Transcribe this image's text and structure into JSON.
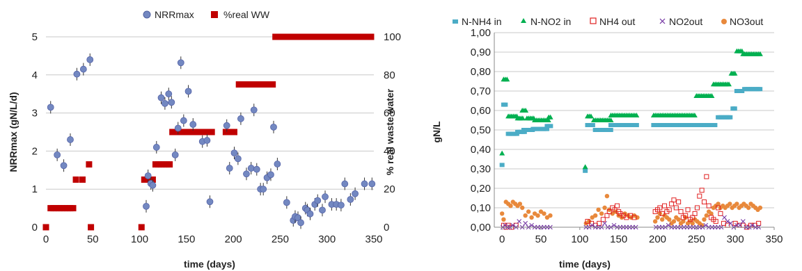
{
  "chart_data": [
    {
      "type": "scatter",
      "title": "",
      "xlabel": "time (days)",
      "ylabel": "NRRmax (gN/L/d)",
      "y2label": "% real waste water",
      "xlim": [
        0,
        350
      ],
      "ylim": [
        0,
        5
      ],
      "y2lim": [
        0,
        100
      ],
      "xticks": [
        "0",
        "50",
        "100",
        "150",
        "200",
        "250",
        "300",
        "350"
      ],
      "yticks": [
        "0",
        "1",
        "2",
        "3",
        "4",
        "5"
      ],
      "y2ticks": [
        "0",
        "20",
        "40",
        "60",
        "80",
        "100"
      ],
      "grid": true,
      "legend_position": "top",
      "series": [
        {
          "name": "NRRmax",
          "axis": "left",
          "marker": "circle",
          "color": "#7388C1",
          "x": [
            5,
            12,
            19,
            26,
            33,
            40,
            47,
            107,
            109,
            112,
            114,
            118,
            123,
            127,
            131,
            134,
            138,
            141,
            144,
            147,
            152,
            157,
            167,
            172,
            175,
            193,
            196,
            201,
            205,
            208,
            214,
            219,
            222,
            225,
            229,
            232,
            236,
            240,
            243,
            247,
            257,
            264,
            266,
            269,
            272,
            277,
            279,
            282,
            287,
            290,
            295,
            298,
            305,
            310,
            315,
            319,
            325,
            330,
            340,
            348
          ],
          "y": [
            3.15,
            1.9,
            1.62,
            2.3,
            4.02,
            4.15,
            4.4,
            0.55,
            1.35,
            1.15,
            1.1,
            2.1,
            3.4,
            3.25,
            3.5,
            3.28,
            1.9,
            2.6,
            4.32,
            2.8,
            3.57,
            2.7,
            2.25,
            2.28,
            0.67,
            2.67,
            1.55,
            1.95,
            1.8,
            2.85,
            1.4,
            1.55,
            3.08,
            1.52,
            1.0,
            1.0,
            1.3,
            1.38,
            2.63,
            1.66,
            0.65,
            0.18,
            0.28,
            0.25,
            0.12,
            0.5,
            0.45,
            0.35,
            0.6,
            0.7,
            0.45,
            0.8,
            0.6,
            0.6,
            0.58,
            1.14,
            0.73,
            0.88,
            1.14,
            1.14
          ]
        },
        {
          "name": "%real WW",
          "axis": "right",
          "marker": "square",
          "color": "#C00000",
          "x": [
            0,
            5,
            8,
            11,
            14,
            17,
            20,
            23,
            26,
            29,
            32,
            39,
            46,
            48,
            102,
            105,
            108,
            111,
            114,
            117,
            120,
            123,
            126,
            129,
            132,
            135,
            138,
            141,
            144,
            147,
            150,
            153,
            156,
            159,
            162,
            165,
            168,
            171,
            174,
            177,
            192,
            195,
            198,
            201,
            206,
            209,
            212,
            215,
            218,
            221,
            224,
            227,
            230,
            233,
            236,
            239,
            242,
            245,
            248,
            251,
            254,
            257,
            260,
            263,
            266,
            269,
            272,
            275,
            278,
            281,
            284,
            287,
            290,
            293,
            296,
            299,
            302,
            305,
            308,
            311,
            314,
            317,
            320,
            323,
            326,
            329,
            332,
            335,
            338,
            341,
            344,
            347
          ],
          "y": [
            0,
            10,
            10,
            10,
            10,
            10,
            10,
            10,
            10,
            10,
            25,
            25,
            33,
            0,
            0,
            25,
            25,
            25,
            25,
            33,
            33,
            33,
            33,
            33,
            33,
            50,
            50,
            50,
            50,
            50,
            50,
            50,
            50,
            50,
            50,
            50,
            50,
            50,
            50,
            50,
            50,
            50,
            50,
            50,
            75,
            75,
            75,
            75,
            75,
            75,
            75,
            75,
            75,
            75,
            75,
            75,
            75,
            100,
            100,
            100,
            100,
            100,
            100,
            100,
            100,
            100,
            100,
            100,
            100,
            100,
            100,
            100,
            100,
            100,
            100,
            100,
            100,
            100,
            100,
            100,
            100,
            100,
            100,
            100,
            100,
            100,
            100,
            100,
            100,
            100,
            100,
            100
          ]
        }
      ]
    },
    {
      "type": "scatter",
      "title": "",
      "xlabel": "time (days)",
      "ylabel": "gN/L",
      "xlim": [
        -10,
        350
      ],
      "ylim": [
        0,
        1
      ],
      "xticks": [
        "0",
        "50",
        "100",
        "150",
        "200",
        "250",
        "300",
        "350"
      ],
      "yticks": [
        "0,00",
        "0,10",
        "0,20",
        "0,30",
        "0,40",
        "0,50",
        "0,60",
        "0,70",
        "0,80",
        "0,90",
        "1,00"
      ],
      "grid": true,
      "legend_position": "top",
      "series": [
        {
          "name": "N-NH4 in",
          "marker": "square",
          "color": "#4BACC6",
          "segments": [
            {
              "x0": 0,
              "x1": 0,
              "y": 0.32
            },
            {
              "x0": 2,
              "x1": 6,
              "y": 0.63
            },
            {
              "x0": 8,
              "x1": 20,
              "y": 0.48
            },
            {
              "x0": 20,
              "x1": 30,
              "y": 0.49
            },
            {
              "x0": 28,
              "x1": 40,
              "y": 0.5
            },
            {
              "x0": 40,
              "x1": 58,
              "y": 0.505
            },
            {
              "x0": 58,
              "x1": 64,
              "y": 0.52
            },
            {
              "x0": 107,
              "x1": 107,
              "y": 0.29
            },
            {
              "x0": 110,
              "x1": 118,
              "y": 0.525
            },
            {
              "x0": 120,
              "x1": 140,
              "y": 0.5
            },
            {
              "x0": 140,
              "x1": 175,
              "y": 0.525
            },
            {
              "x0": 195,
              "x1": 265,
              "y": 0.525
            },
            {
              "x0": 265,
              "x1": 275,
              "y": 0.525
            },
            {
              "x0": 278,
              "x1": 295,
              "y": 0.565
            },
            {
              "x0": 297,
              "x1": 300,
              "y": 0.61
            },
            {
              "x0": 302,
              "x1": 310,
              "y": 0.7
            },
            {
              "x0": 312,
              "x1": 332,
              "y": 0.71
            }
          ]
        },
        {
          "name": "N-NO2 in",
          "marker": "triangle",
          "color": "#00B050",
          "segments": [
            {
              "x0": 0,
              "x1": 0,
              "y": 0.38
            },
            {
              "x0": 2,
              "x1": 8,
              "y": 0.76
            },
            {
              "x0": 8,
              "x1": 20,
              "y": 0.57
            },
            {
              "x0": 20,
              "x1": 28,
              "y": 0.56
            },
            {
              "x0": 26,
              "x1": 32,
              "y": 0.6
            },
            {
              "x0": 32,
              "x1": 42,
              "y": 0.56
            },
            {
              "x0": 42,
              "x1": 60,
              "y": 0.55
            },
            {
              "x0": 60,
              "x1": 64,
              "y": 0.565
            },
            {
              "x0": 107,
              "x1": 107,
              "y": 0.31
            },
            {
              "x0": 110,
              "x1": 116,
              "y": 0.57
            },
            {
              "x0": 118,
              "x1": 140,
              "y": 0.55
            },
            {
              "x0": 140,
              "x1": 175,
              "y": 0.575
            },
            {
              "x0": 195,
              "x1": 248,
              "y": 0.575
            },
            {
              "x0": 250,
              "x1": 270,
              "y": 0.675
            },
            {
              "x0": 272,
              "x1": 293,
              "y": 0.735
            },
            {
              "x0": 295,
              "x1": 300,
              "y": 0.79
            },
            {
              "x0": 302,
              "x1": 310,
              "y": 0.905
            },
            {
              "x0": 310,
              "x1": 333,
              "y": 0.89
            }
          ]
        },
        {
          "name": "NH4 out",
          "marker": "square-open",
          "color": "#E02020",
          "x": [
            2,
            5,
            8,
            12,
            18,
            110,
            115,
            120,
            125,
            130,
            135,
            138,
            142,
            145,
            148,
            150,
            152,
            156,
            160,
            165,
            170,
            197,
            200,
            203,
            206,
            209,
            212,
            215,
            218,
            221,
            224,
            227,
            230,
            233,
            236,
            239,
            242,
            245,
            248,
            251,
            254,
            257,
            260,
            263,
            266,
            269,
            272,
            275,
            278,
            281,
            285,
            290,
            300,
            305,
            310,
            315,
            320,
            325,
            330
          ],
          "y": [
            0.01,
            0.0,
            0.01,
            0.0,
            0.01,
            0.03,
            0.02,
            0.01,
            0.02,
            0.04,
            0.06,
            0.08,
            0.1,
            0.09,
            0.11,
            0.08,
            0.07,
            0.06,
            0.05,
            0.06,
            0.05,
            0.08,
            0.09,
            0.1,
            0.07,
            0.11,
            0.08,
            0.09,
            0.12,
            0.14,
            0.1,
            0.13,
            0.08,
            0.05,
            0.06,
            0.09,
            0.04,
            0.05,
            0.07,
            0.1,
            0.16,
            0.19,
            0.13,
            0.26,
            0.11,
            0.05,
            0.04,
            0.03,
            0.1,
            0.07,
            0.02,
            0.01,
            0.02,
            0.01,
            0.01,
            0.0,
            0.01,
            0.01,
            0.02
          ]
        },
        {
          "name": "NO2out",
          "marker": "cross",
          "color": "#7030A0",
          "x": [
            1,
            4,
            7,
            10,
            14,
            18,
            22,
            26,
            30,
            34,
            38,
            42,
            46,
            50,
            54,
            58,
            62,
            108,
            112,
            116,
            120,
            124,
            128,
            132,
            136,
            140,
            144,
            148,
            152,
            156,
            160,
            164,
            168,
            172,
            198,
            202,
            206,
            210,
            214,
            218,
            222,
            226,
            230,
            234,
            238,
            242,
            246,
            250,
            254,
            258,
            262,
            266,
            270,
            274,
            278,
            282,
            286,
            290,
            294,
            298,
            302,
            306,
            310,
            314,
            318,
            322,
            326,
            330
          ],
          "y": [
            0.0,
            0.01,
            0.0,
            0.0,
            0.01,
            0.0,
            0.03,
            0.0,
            0.02,
            0.0,
            0.01,
            0.0,
            0.0,
            0.0,
            0.0,
            0.0,
            0.0,
            0.0,
            0.0,
            0.01,
            0.0,
            0.0,
            0.0,
            0.02,
            0.0,
            0.0,
            0.01,
            0.0,
            0.0,
            0.0,
            0.0,
            0.0,
            0.0,
            0.0,
            0.0,
            0.0,
            0.0,
            0.0,
            0.01,
            0.0,
            0.0,
            0.0,
            0.0,
            0.0,
            0.0,
            0.0,
            0.0,
            0.0,
            0.0,
            0.0,
            0.01,
            0.0,
            0.0,
            0.0,
            0.0,
            0.0,
            0.05,
            0.03,
            0.02,
            0.0,
            0.01,
            0.01,
            0.03,
            0.0,
            0.0,
            0.01,
            0.0,
            0.0
          ]
        },
        {
          "name": "NO3out",
          "marker": "circle",
          "color": "#E8893C",
          "x": [
            0,
            2,
            5,
            8,
            11,
            14,
            17,
            20,
            23,
            26,
            30,
            34,
            38,
            42,
            46,
            50,
            54,
            58,
            62,
            108,
            112,
            116,
            120,
            124,
            128,
            132,
            135,
            138,
            142,
            146,
            150,
            154,
            158,
            162,
            166,
            170,
            174,
            197,
            200,
            203,
            206,
            209,
            212,
            215,
            218,
            221,
            224,
            227,
            230,
            233,
            236,
            239,
            242,
            245,
            248,
            251,
            254,
            257,
            260,
            263,
            266,
            269,
            272,
            275,
            278,
            281,
            284,
            287,
            290,
            293,
            296,
            299,
            302,
            305,
            308,
            311,
            314,
            317,
            320,
            323,
            326,
            329,
            332
          ],
          "y": [
            0.07,
            0.04,
            0.13,
            0.12,
            0.11,
            0.13,
            0.12,
            0.11,
            0.12,
            0.1,
            0.06,
            0.08,
            0.05,
            0.07,
            0.06,
            0.08,
            0.07,
            0.05,
            0.06,
            0.02,
            0.03,
            0.05,
            0.06,
            0.09,
            0.07,
            0.1,
            0.16,
            0.09,
            0.07,
            0.08,
            0.06,
            0.05,
            0.07,
            0.06,
            0.05,
            0.06,
            0.05,
            0.03,
            0.05,
            0.07,
            0.04,
            0.06,
            0.05,
            0.04,
            0.02,
            0.03,
            0.05,
            0.04,
            0.02,
            0.03,
            0.05,
            0.02,
            0.03,
            0.02,
            0.04,
            0.03,
            0.02,
            0.01,
            0.04,
            0.06,
            0.08,
            0.07,
            0.1,
            0.11,
            0.12,
            0.1,
            0.11,
            0.1,
            0.11,
            0.12,
            0.1,
            0.11,
            0.12,
            0.1,
            0.11,
            0.12,
            0.11,
            0.1,
            0.12,
            0.11,
            0.1,
            0.09,
            0.1
          ]
        }
      ]
    }
  ]
}
